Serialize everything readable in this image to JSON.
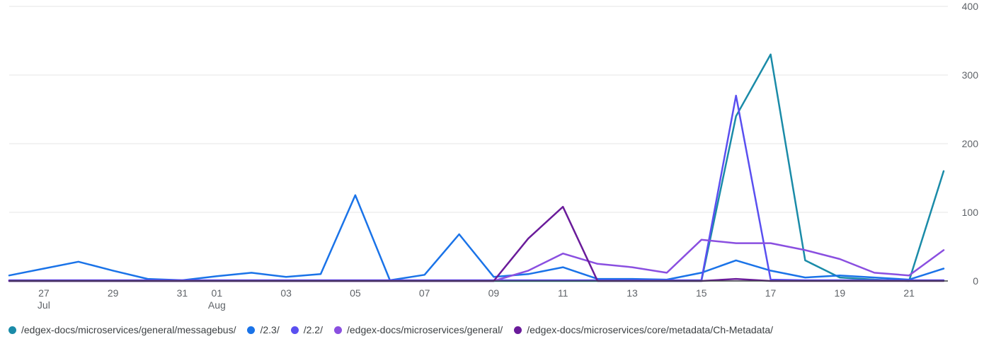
{
  "chart_data": {
    "type": "line",
    "x": [
      "26",
      "27",
      "28",
      "29",
      "30",
      "31",
      "01",
      "02",
      "03",
      "04",
      "05",
      "06",
      "07",
      "08",
      "09",
      "10",
      "11",
      "12",
      "13",
      "14",
      "15",
      "16",
      "17",
      "18",
      "19",
      "20",
      "21",
      "22"
    ],
    "x_tick_labels": [
      {
        "label": "27",
        "sub": "Jul",
        "index": 1
      },
      {
        "label": "29",
        "sub": "",
        "index": 3
      },
      {
        "label": "31",
        "sub": "",
        "index": 5
      },
      {
        "label": "01",
        "sub": "Aug",
        "index": 6
      },
      {
        "label": "03",
        "sub": "",
        "index": 8
      },
      {
        "label": "05",
        "sub": "",
        "index": 10
      },
      {
        "label": "07",
        "sub": "",
        "index": 12
      },
      {
        "label": "09",
        "sub": "",
        "index": 14
      },
      {
        "label": "11",
        "sub": "",
        "index": 16
      },
      {
        "label": "13",
        "sub": "",
        "index": 18
      },
      {
        "label": "15",
        "sub": "",
        "index": 20
      },
      {
        "label": "17",
        "sub": "",
        "index": 22
      },
      {
        "label": "19",
        "sub": "",
        "index": 24
      },
      {
        "label": "21",
        "sub": "",
        "index": 26
      }
    ],
    "y_ticks": [
      "0",
      "100",
      "200",
      "300",
      "400"
    ],
    "ylim": [
      0,
      400
    ],
    "grid": true,
    "legend_position": "bottom",
    "series": [
      {
        "name": "/edgex-docs/microservices/general/messagebus/",
        "color": "#1a8ba8",
        "values": [
          0,
          0,
          0,
          0,
          0,
          0,
          0,
          0,
          0,
          0,
          0,
          0,
          0,
          0,
          0,
          0,
          0,
          0,
          0,
          0,
          0,
          240,
          330,
          30,
          5,
          2,
          0,
          160
        ]
      },
      {
        "name": "/2.3/",
        "color": "#1a73e8",
        "values": [
          8,
          18,
          28,
          15,
          3,
          1,
          7,
          12,
          6,
          10,
          125,
          1,
          9,
          68,
          6,
          10,
          20,
          3,
          3,
          2,
          12,
          30,
          15,
          5,
          8,
          5,
          2,
          18
        ]
      },
      {
        "name": "/2.2/",
        "color": "#5a4ff0",
        "values": [
          1,
          1,
          1,
          1,
          1,
          1,
          1,
          1,
          1,
          1,
          1,
          1,
          1,
          1,
          1,
          1,
          1,
          1,
          1,
          1,
          1,
          270,
          2,
          1,
          1,
          1,
          1,
          1
        ]
      },
      {
        "name": "/edgex-docs/microservices/general/",
        "color": "#8a4fe0",
        "values": [
          0,
          0,
          0,
          0,
          0,
          0,
          0,
          0,
          0,
          0,
          0,
          0,
          0,
          0,
          0,
          15,
          40,
          25,
          20,
          12,
          60,
          55,
          55,
          45,
          32,
          12,
          8,
          45
        ]
      },
      {
        "name": "/edgex-docs/microservices/core/metadata/Ch-Metadata/",
        "color": "#6a1b9a",
        "values": [
          0,
          0,
          0,
          0,
          0,
          0,
          0,
          0,
          0,
          0,
          0,
          0,
          0,
          0,
          0,
          62,
          108,
          0,
          0,
          0,
          0,
          3,
          0,
          0,
          0,
          0,
          0,
          0
        ]
      }
    ]
  }
}
